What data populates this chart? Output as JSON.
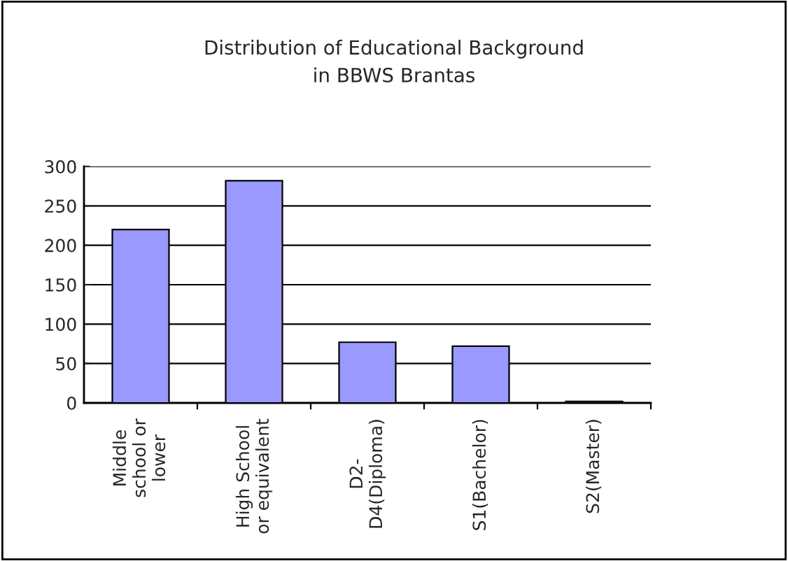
{
  "chart_data": {
    "type": "bar",
    "title": "Distribution of Educational Background\nin BBWS Brantas",
    "categories": [
      "Middle\nschool or\nlower",
      "High School\nor equivalent",
      "D2-\nD4(Diploma)",
      "S1(Bachelor)",
      "S2(Master)"
    ],
    "values": [
      220,
      282,
      77,
      72,
      2
    ],
    "color": "#9999ff",
    "ylim": [
      0,
      300
    ],
    "yticks": [
      0,
      50,
      100,
      150,
      200,
      250,
      300
    ],
    "grid": "y",
    "legend": false
  }
}
